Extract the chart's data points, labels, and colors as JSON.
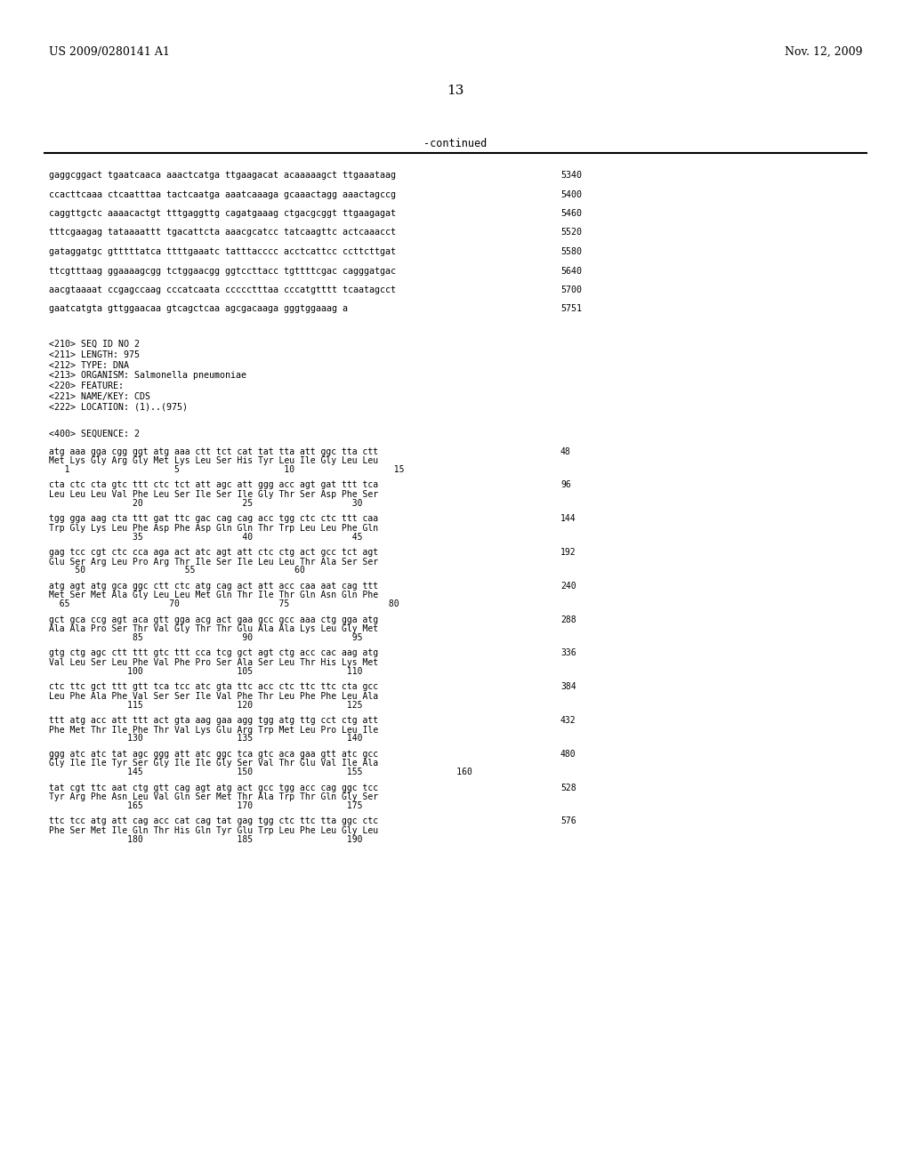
{
  "header_left": "US 2009/0280141 A1",
  "header_right": "Nov. 12, 2009",
  "page_number": "13",
  "continued_label": "-continued",
  "background_color": "#ffffff",
  "text_color": "#000000",
  "content_lines": [
    {
      "text": "gaggcggact tgaatcaaca aaactcatga ttgaagacat acaaaaagct ttgaaataag",
      "number": "5340"
    },
    {
      "text": "ccacttcaaa ctcaatttaa tactcaatga aaatcaaaga gcaaactagg aaactagccg",
      "number": "5400"
    },
    {
      "text": "caggttgctc aaaacactgt tttgaggttg cagatgaaag ctgacgcggt ttgaagagat",
      "number": "5460"
    },
    {
      "text": "tttcgaagag tataaaattt tgacattcta aaacgcatcc tatcaagttc actcaaacct",
      "number": "5520"
    },
    {
      "text": "gataggatgc gtttttatca ttttgaaatc tatttacccc acctcattcc ccttcttgat",
      "number": "5580"
    },
    {
      "text": "ttcgtttaag ggaaaagcgg tctggaacgg ggtccttacc tgttttcgac cagggatgac",
      "number": "5640"
    },
    {
      "text": "aacgtaaaat ccgagccaag cccatcaata ccccctttaa cccatgtttt tcaatagcct",
      "number": "5700"
    },
    {
      "text": "gaatcatgta gttggaacaa gtcagctcaa agcgacaaga gggtggaaag a",
      "number": "5751"
    }
  ],
  "metadata_lines": [
    "<210> SEQ ID NO 2",
    "<211> LENGTH: 975",
    "<212> TYPE: DNA",
    "<213> ORGANISM: Salmonella pneumoniae",
    "<220> FEATURE:",
    "<221> NAME/KEY: CDS",
    "<222> LOCATION: (1)..(975)"
  ],
  "sequence_label": "<400> SEQUENCE: 2",
  "sequence_blocks": [
    {
      "dna": "atg aaa gga cgg ggt atg aaa ctt tct cat tat tta att ggc tta ctt",
      "num_right": "48",
      "aa": "Met Lys Gly Arg Gly Met Lys Leu Ser His Tyr Leu Ile Gly Leu Leu",
      "pos": "   1                    5                    10                   15"
    },
    {
      "dna": "cta ctc cta gtc ttt ctc tct att agc att ggg acc agt gat ttt tca",
      "num_right": "96",
      "aa": "Leu Leu Leu Val Phe Leu Ser Ile Ser Ile Gly Thr Ser Asp Phe Ser",
      "pos": "                20                   25                   30"
    },
    {
      "dna": "tgg gga aag cta ttt gat ttc gac cag cag acc tgg ctc ctc ttt caa",
      "num_right": "144",
      "aa": "Trp Gly Lys Leu Phe Asp Phe Asp Gln Gln Thr Trp Leu Leu Phe Gln",
      "pos": "                35                   40                   45"
    },
    {
      "dna": "gag tcc cgt ctc cca aga act atc agt att ctc ctg act gcc tct agt",
      "num_right": "192",
      "aa": "Glu Ser Arg Leu Pro Arg Thr Ile Ser Ile Leu Leu Thr Ala Ser Ser",
      "pos": "     50                   55                   60"
    },
    {
      "dna": "atg agt atg gca ggc ctt ctc atg cag act att acc caa aat cag ttt",
      "num_right": "240",
      "aa": "Met Ser Met Ala Gly Leu Leu Met Gln Thr Ile Thr Gln Asn Gln Phe",
      "pos": "  65                   70                   75                   80"
    },
    {
      "dna": "gct gca ccg agt aca gtt gga acg act gaa gcc gcc aaa ctg gga atg",
      "num_right": "288",
      "aa": "Ala Ala Pro Ser Thr Val Gly Thr Thr Glu Ala Ala Lys Leu Gly Met",
      "pos": "                85                   90                   95"
    },
    {
      "dna": "gtg ctg agc ctt ttt gtc ttt cca tcg gct agt ctg acc cac aag atg",
      "num_right": "336",
      "aa": "Val Leu Ser Leu Phe Val Phe Pro Ser Ala Ser Leu Thr His Lys Met",
      "pos": "               100                  105                  110"
    },
    {
      "dna": "ctc ttc gct ttt gtt tca tcc atc gta ttc acc ctc ttc ttc cta gcc",
      "num_right": "384",
      "aa": "Leu Phe Ala Phe Val Ser Ser Ile Val Phe Thr Leu Phe Phe Leu Ala",
      "pos": "               115                  120                  125"
    },
    {
      "dna": "ttt atg acc att ttt act gta aag gaa agg tgg atg ttg cct ctg att",
      "num_right": "432",
      "aa": "Phe Met Thr Ile Phe Thr Val Lys Glu Arg Trp Met Leu Pro Leu Ile",
      "pos": "               130                  135                  140"
    },
    {
      "dna": "ggg atc atc tat agc ggg att atc ggc tca gtc aca gaa gtt atc gcc",
      "num_right": "480",
      "aa": "Gly Ile Ile Tyr Ser Gly Ile Ile Gly Ser Val Thr Glu Val Ile Ala",
      "pos": "               145                  150                  155                  160"
    },
    {
      "dna": "tat cgt ttc aat ctg gtt cag agt atg act gcc tgg acc cag ggc tcc",
      "num_right": "528",
      "aa": "Tyr Arg Phe Asn Leu Val Gln Ser Met Thr Ala Trp Thr Gln Gly Ser",
      "pos": "               165                  170                  175"
    },
    {
      "dna": "ttc tcc atg att cag acc cat cag tat gag tgg ctc ttc tta ggc ctc",
      "num_right": "576",
      "aa": "Phe Ser Met Ile Gln Thr His Gln Tyr Glu Trp Leu Phe Leu Gly Leu",
      "pos": "               180                  185                  190"
    }
  ]
}
